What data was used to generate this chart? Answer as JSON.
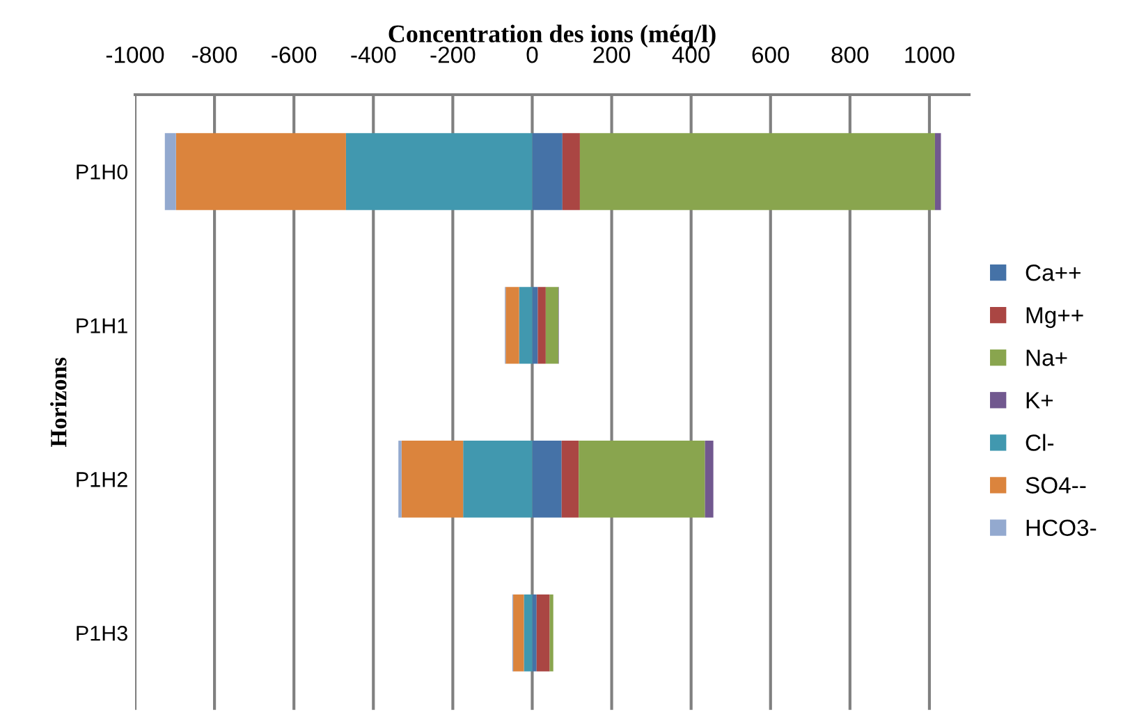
{
  "chart_data": {
    "type": "bar",
    "orientation": "horizontal",
    "stacked": true,
    "xlabel": "Concentration des ions (méq/l)",
    "ylabel": "Horizons",
    "categories": [
      "P1H0",
      "P1H1",
      "P1H2",
      "P1H3"
    ],
    "series": [
      {
        "name": "Ca++",
        "color": "#4572a7",
        "values": [
          76,
          14,
          74,
          11
        ]
      },
      {
        "name": "Mg++",
        "color": "#aa4643",
        "values": [
          44,
          20,
          43,
          33
        ]
      },
      {
        "name": "Na+",
        "color": "#89a54e",
        "values": [
          894,
          32,
          318,
          9
        ]
      },
      {
        "name": "K+",
        "color": "#71588f",
        "values": [
          15,
          1,
          21,
          null
        ]
      },
      {
        "name": "Cl-",
        "color": "#4198af",
        "values": [
          -469,
          -33,
          -174,
          -21
        ]
      },
      {
        "name": "SO4--",
        "color": "#db843d",
        "values": [
          -428,
          -34,
          -155,
          -27
        ]
      },
      {
        "name": "HCO3-",
        "color": "#93a9cf",
        "values": [
          -28,
          -2,
          -8,
          -2
        ]
      }
    ],
    "xlim": [
      -1000,
      1100
    ],
    "xticks": [
      -1000,
      -800,
      -600,
      -400,
      -200,
      0,
      200,
      400,
      600,
      800,
      1000
    ],
    "grid": "x",
    "legend": "right"
  }
}
